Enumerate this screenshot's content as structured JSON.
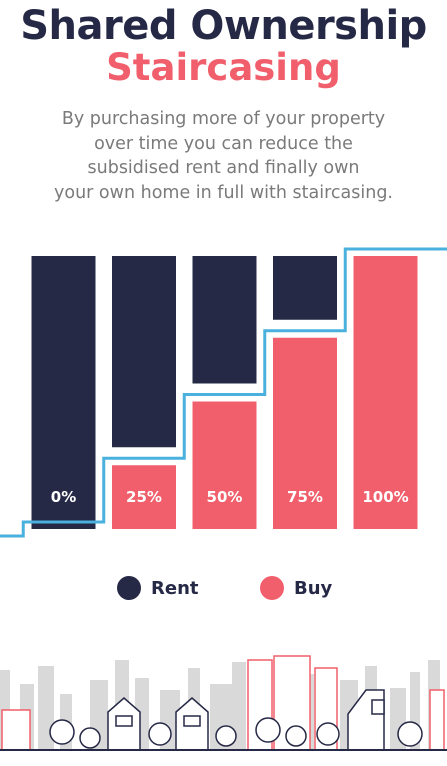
{
  "header": {
    "title_line1": "Shared Ownership",
    "title_line2": "Staircasing",
    "intro_lines": [
      "By purchasing more of your property",
      "over time you can reduce the",
      "subsidised rent and finally own",
      "your own home in full with staircasing."
    ]
  },
  "colors": {
    "rent": "#262946",
    "buy": "#f05f6b",
    "staircase": "#4ab1de",
    "skyline": "#d6d6d6"
  },
  "chart_data": {
    "type": "bar",
    "stacked": true,
    "categories": [
      "0%",
      "25%",
      "50%",
      "75%",
      "100%"
    ],
    "series": [
      {
        "name": "Rent",
        "values": [
          100,
          75,
          50,
          25,
          0
        ]
      },
      {
        "name": "Buy",
        "values": [
          0,
          25,
          50,
          75,
          100
        ]
      }
    ],
    "ylim": [
      0,
      100
    ],
    "grid": false,
    "legend_position": "bottom-center"
  },
  "legend": {
    "rent_label": "Rent",
    "buy_label": "Buy"
  },
  "illustration": {
    "icon": "city-skyline-icon"
  }
}
